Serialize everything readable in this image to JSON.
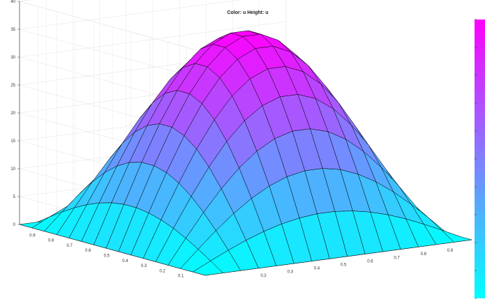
{
  "chart_data": {
    "type": "surface",
    "title": "Color: u Height: u",
    "xlabel": "",
    "ylabel": "",
    "zlabel": "",
    "x": [
      0,
      0.0667,
      0.1333,
      0.2,
      0.2667,
      0.3333,
      0.4,
      0.4667,
      0.5333,
      0.6,
      0.6667,
      0.7333,
      0.8,
      0.8667,
      0.9333,
      1.0
    ],
    "y": [
      0,
      0.0667,
      0.1333,
      0.2,
      0.2667,
      0.3333,
      0.4,
      0.4667,
      0.5333,
      0.6,
      0.6667,
      0.7333,
      0.8,
      0.8667,
      0.9333,
      1.0
    ],
    "z_formula": "u(x,y) = 36 * sin(pi*x) * sin(pi*y)",
    "z_max": 36,
    "z_min": 0,
    "xlim": [
      0.1,
      0.9
    ],
    "ylim": [
      0.1,
      0.9
    ],
    "zlim": [
      0,
      40
    ],
    "z_ticks": [
      0,
      5,
      10,
      15,
      20,
      25,
      30,
      35,
      40
    ],
    "x_ticks": [
      0.2,
      0.3,
      0.4,
      0.5,
      0.6,
      0.7,
      0.8,
      0.9
    ],
    "y_ticks": [
      0.1,
      0.2,
      0.3,
      0.4,
      0.5,
      0.6,
      0.7,
      0.8,
      0.9
    ],
    "colormap": "cool",
    "colormap_low": "#00ffff",
    "colormap_high": "#ff00ff",
    "edge_color": "#000000",
    "grid": true,
    "colorbar": true,
    "colorbar_position": "right"
  }
}
